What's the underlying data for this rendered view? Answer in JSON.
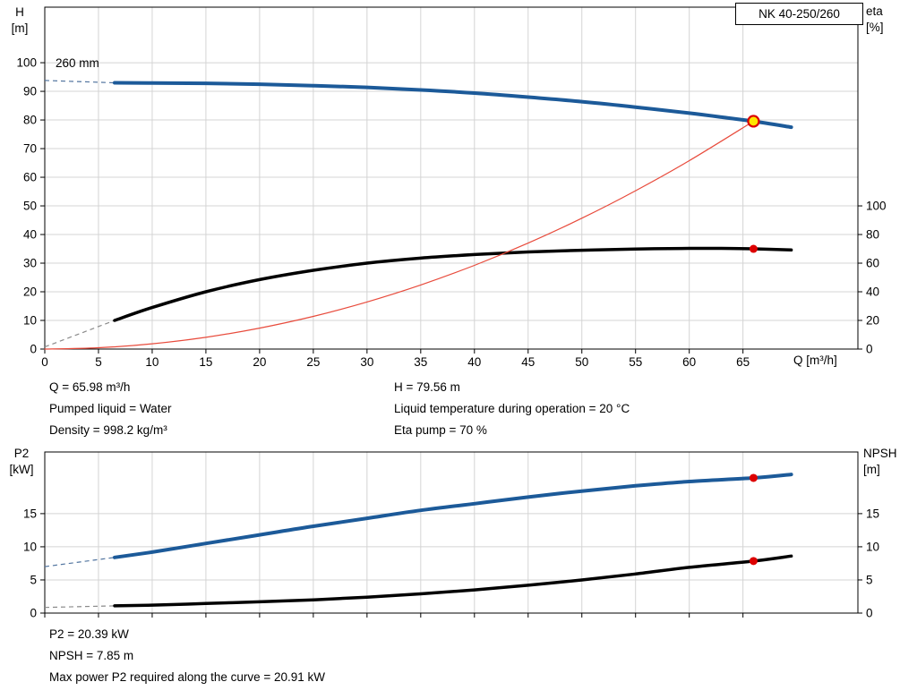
{
  "pump": {
    "model": "NK 40-250/260",
    "impeller_label": "260 mm"
  },
  "top_info": {
    "col1": [
      "Q = 65.98 m³/h",
      "Pumped liquid = Water",
      "Density = 998.2 kg/m³"
    ],
    "col2": [
      "H = 79.56 m",
      "Liquid temperature during operation = 20 °C",
      "Eta pump = 70 %"
    ]
  },
  "bottom_info": [
    "P2 = 20.39 kW",
    "NPSH = 7.85 m",
    "Max power P2 required along the curve = 20.91 kW"
  ],
  "colors": {
    "curve_blue": "#1c5a99",
    "curve_black": "#000000",
    "system_red": "#e84b3c",
    "duty_fill": "#ffe600",
    "marker_red": "#dd0000",
    "grid": "#d4d4d4"
  },
  "chart_data": [
    {
      "type": "line",
      "title": "NK 40-250/260",
      "x_axis": {
        "label": "Q [m³/h]",
        "min": 0,
        "max": 75.7,
        "ticks": [
          0,
          5,
          10,
          15,
          20,
          25,
          30,
          35,
          40,
          45,
          50,
          55,
          60,
          65
        ],
        "tick_labels": true
      },
      "y_left": {
        "title": [
          "H",
          "[m]"
        ],
        "min": 0,
        "max": 119.4,
        "ticks": [
          0,
          10,
          20,
          30,
          40,
          50,
          60,
          70,
          80,
          90,
          100
        ]
      },
      "y_right": {
        "title": [
          "eta",
          "[%]"
        ],
        "min": 0,
        "max": 238.8,
        "ticks": [
          0,
          20,
          40,
          60,
          80,
          100
        ],
        "scale_to_left": 0.5
      },
      "series": [
        {
          "name": "head-curve-260mm",
          "color": "#1c5a99",
          "dash_color": "#51749f",
          "width": 4,
          "axis": "left",
          "points": [
            [
              6.5,
              93.0
            ],
            [
              10,
              92.9
            ],
            [
              15,
              92.8
            ],
            [
              20,
              92.5
            ],
            [
              25,
              92.0
            ],
            [
              30,
              91.4
            ],
            [
              35,
              90.5
            ],
            [
              40,
              89.4
            ],
            [
              45,
              88.0
            ],
            [
              50,
              86.4
            ],
            [
              55,
              84.5
            ],
            [
              60,
              82.4
            ],
            [
              63,
              81.0
            ],
            [
              65.98,
              79.56
            ],
            [
              69.5,
              77.5
            ]
          ],
          "lead_dash": [
            [
              0,
              93.8
            ],
            [
              6.5,
              93.0
            ]
          ]
        },
        {
          "name": "efficiency-curve",
          "color": "#000000",
          "dash_color": "#8a8a8a",
          "width": 3.5,
          "axis": "right",
          "points": [
            [
              6.5,
              20
            ],
            [
              10,
              29
            ],
            [
              15,
              40
            ],
            [
              20,
              48.5
            ],
            [
              25,
              55
            ],
            [
              30,
              60
            ],
            [
              35,
              63.5
            ],
            [
              40,
              66
            ],
            [
              45,
              67.8
            ],
            [
              50,
              69
            ],
            [
              55,
              69.9
            ],
            [
              60,
              70.3
            ],
            [
              63,
              70.3
            ],
            [
              65.98,
              70
            ],
            [
              69.5,
              69.2
            ]
          ],
          "lead_dash": [
            [
              0,
              1.5
            ],
            [
              6.5,
              20
            ]
          ]
        },
        {
          "name": "system-curve",
          "color": "#e84b3c",
          "width": 1.2,
          "axis": "left",
          "points": [
            [
              0,
              0
            ],
            [
              5,
              0.46
            ],
            [
              10,
              1.83
            ],
            [
              15,
              4.11
            ],
            [
              20,
              7.31
            ],
            [
              25,
              11.42
            ],
            [
              30,
              16.45
            ],
            [
              35,
              22.39
            ],
            [
              40,
              29.24
            ],
            [
              45,
              37.01
            ],
            [
              50,
              45.69
            ],
            [
              55,
              55.28
            ],
            [
              60,
              65.79
            ],
            [
              65.98,
              79.56
            ]
          ]
        }
      ],
      "markers": [
        {
          "name": "duty-point",
          "axis": "left",
          "x": 65.98,
          "y": 79.56,
          "r": 6,
          "fill": "#ffe600",
          "stroke": "#dd0000",
          "stroke_width": 2.2
        },
        {
          "name": "eta-point",
          "axis": "right",
          "x": 65.98,
          "y": 70,
          "r": 4.5,
          "fill": "#dd0000"
        }
      ]
    },
    {
      "type": "line",
      "title": "",
      "x_axis": {
        "label": "",
        "min": 0,
        "max": 75.7,
        "ticks": [
          0,
          5,
          10,
          15,
          20,
          25,
          30,
          35,
          40,
          45,
          50,
          55,
          60,
          65
        ],
        "tick_labels": false
      },
      "y_left": {
        "title": [
          "P2",
          "[kW]"
        ],
        "min": 0,
        "max": 24.3,
        "ticks": [
          0,
          5,
          10,
          15
        ]
      },
      "y_right": {
        "title": [
          "NPSH",
          "[m]"
        ],
        "min": 0,
        "max": 24.3,
        "ticks": [
          0,
          5,
          10,
          15
        ],
        "scale_to_left": 1
      },
      "series": [
        {
          "name": "p2-curve",
          "color": "#1c5a99",
          "dash_color": "#51749f",
          "width": 4,
          "axis": "left",
          "points": [
            [
              6.5,
              8.4
            ],
            [
              10,
              9.2
            ],
            [
              15,
              10.5
            ],
            [
              20,
              11.8
            ],
            [
              25,
              13.1
            ],
            [
              30,
              14.3
            ],
            [
              35,
              15.5
            ],
            [
              40,
              16.5
            ],
            [
              45,
              17.5
            ],
            [
              50,
              18.4
            ],
            [
              55,
              19.2
            ],
            [
              60,
              19.85
            ],
            [
              65.98,
              20.39
            ],
            [
              69.5,
              20.91
            ]
          ],
          "lead_dash": [
            [
              0,
              7.0
            ],
            [
              6.5,
              8.4
            ]
          ]
        },
        {
          "name": "npsh-curve",
          "color": "#000000",
          "dash_color": "#8a8a8a",
          "width": 3.5,
          "axis": "right",
          "points": [
            [
              6.5,
              1.1
            ],
            [
              10,
              1.2
            ],
            [
              15,
              1.45
            ],
            [
              20,
              1.7
            ],
            [
              25,
              2.0
            ],
            [
              30,
              2.4
            ],
            [
              35,
              2.9
            ],
            [
              40,
              3.5
            ],
            [
              45,
              4.2
            ],
            [
              50,
              5.0
            ],
            [
              55,
              5.9
            ],
            [
              60,
              6.9
            ],
            [
              65.98,
              7.85
            ],
            [
              69.5,
              8.6
            ]
          ],
          "lead_dash": [
            [
              0,
              0.85
            ],
            [
              6.5,
              1.1
            ]
          ]
        }
      ],
      "markers": [
        {
          "name": "p2-point",
          "axis": "left",
          "x": 65.98,
          "y": 20.39,
          "r": 4.5,
          "fill": "#dd0000"
        },
        {
          "name": "npsh-point",
          "axis": "right",
          "x": 65.98,
          "y": 7.85,
          "r": 4.5,
          "fill": "#dd0000"
        }
      ]
    }
  ]
}
